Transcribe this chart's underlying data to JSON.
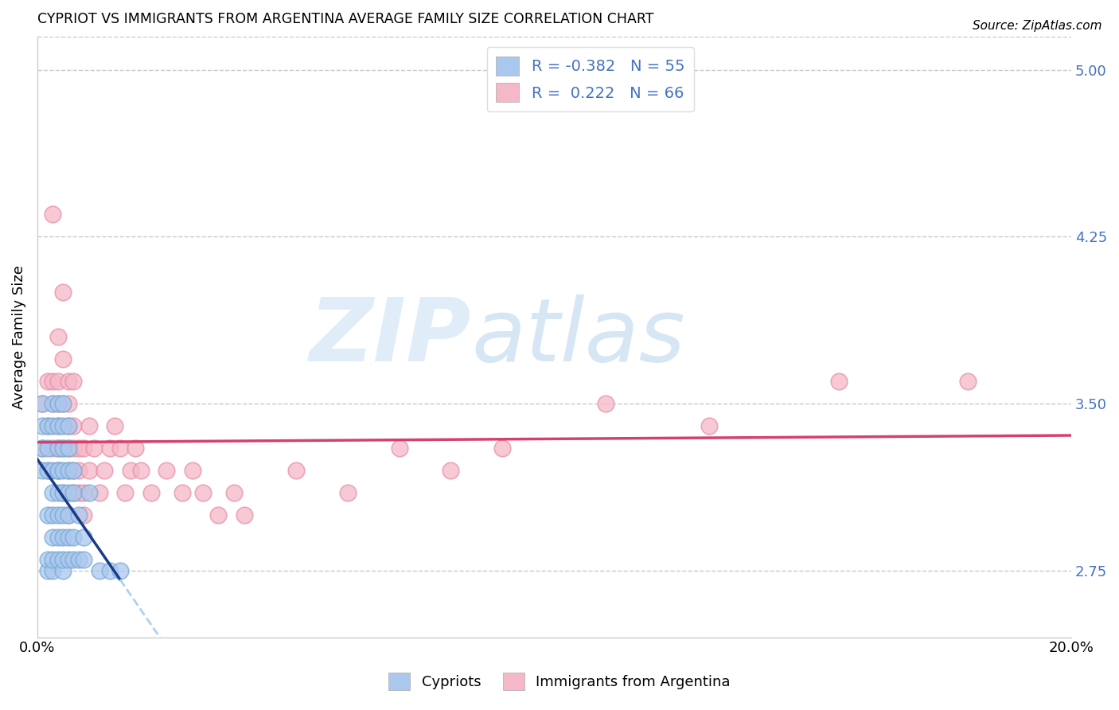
{
  "title": "CYPRIOT VS IMMIGRANTS FROM ARGENTINA AVERAGE FAMILY SIZE CORRELATION CHART",
  "source": "Source: ZipAtlas.com",
  "ylabel": "Average Family Size",
  "xlim": [
    0.0,
    0.2
  ],
  "ylim": [
    2.45,
    5.15
  ],
  "yticks": [
    2.75,
    3.5,
    4.25,
    5.0
  ],
  "xticks": [
    0.0,
    0.05,
    0.1,
    0.15,
    0.2
  ],
  "xticklabels": [
    "0.0%",
    "",
    "",
    "",
    "20.0%"
  ],
  "yticklabel_color": "#4472c4",
  "background_color": "#ffffff",
  "grid_color": "#c8c8c8",
  "watermark_zip": "ZIP",
  "watermark_atlas": "atlas",
  "cypriot_color": "#aac8ee",
  "cypriot_edge_color": "#7aaad4",
  "argentina_color": "#f5b8c8",
  "argentina_edge_color": "#e890a8",
  "cypriot_line_color": "#1a3a8a",
  "argentina_line_color": "#d44070",
  "cypriot_line_dashed_color": "#b0d0f0",
  "legend_title_cypriot": "Cypriots",
  "legend_title_argentina": "Immigrants from Argentina",
  "legend_blue_r": "-0.382",
  "legend_blue_n": "55",
  "legend_pink_r": "0.222",
  "legend_pink_n": "66",
  "cypriot_x": [
    0.001,
    0.001,
    0.001,
    0.001,
    0.002,
    0.002,
    0.002,
    0.002,
    0.002,
    0.002,
    0.003,
    0.003,
    0.003,
    0.003,
    0.003,
    0.003,
    0.003,
    0.003,
    0.004,
    0.004,
    0.004,
    0.004,
    0.004,
    0.004,
    0.004,
    0.004,
    0.004,
    0.005,
    0.005,
    0.005,
    0.005,
    0.005,
    0.005,
    0.005,
    0.005,
    0.005,
    0.006,
    0.006,
    0.006,
    0.006,
    0.006,
    0.006,
    0.006,
    0.007,
    0.007,
    0.007,
    0.007,
    0.008,
    0.008,
    0.009,
    0.009,
    0.01,
    0.012,
    0.014,
    0.016
  ],
  "cypriot_y": [
    3.2,
    3.3,
    3.4,
    3.5,
    2.75,
    2.8,
    3.0,
    3.2,
    3.3,
    3.4,
    2.75,
    2.8,
    2.9,
    3.0,
    3.1,
    3.2,
    3.4,
    3.5,
    2.8,
    2.9,
    3.0,
    3.1,
    3.2,
    3.3,
    3.4,
    3.5,
    3.2,
    2.75,
    2.8,
    2.9,
    3.0,
    3.1,
    3.2,
    3.3,
    3.4,
    3.5,
    2.8,
    2.9,
    3.0,
    3.1,
    3.2,
    3.3,
    3.4,
    2.8,
    2.9,
    3.1,
    3.2,
    2.8,
    3.0,
    2.8,
    2.9,
    3.1,
    2.75,
    2.75,
    2.75
  ],
  "argentina_x": [
    0.001,
    0.001,
    0.002,
    0.002,
    0.002,
    0.003,
    0.003,
    0.003,
    0.003,
    0.004,
    0.004,
    0.004,
    0.004,
    0.004,
    0.004,
    0.005,
    0.005,
    0.005,
    0.005,
    0.005,
    0.006,
    0.006,
    0.006,
    0.006,
    0.006,
    0.006,
    0.007,
    0.007,
    0.007,
    0.007,
    0.007,
    0.008,
    0.008,
    0.008,
    0.009,
    0.009,
    0.009,
    0.01,
    0.01,
    0.011,
    0.012,
    0.013,
    0.014,
    0.015,
    0.016,
    0.017,
    0.018,
    0.019,
    0.02,
    0.022,
    0.025,
    0.028,
    0.03,
    0.032,
    0.035,
    0.038,
    0.04,
    0.05,
    0.06,
    0.07,
    0.08,
    0.09,
    0.11,
    0.13,
    0.155,
    0.18
  ],
  "argentina_y": [
    3.3,
    3.5,
    3.2,
    3.4,
    3.6,
    3.3,
    3.5,
    3.6,
    4.35,
    3.2,
    3.3,
    3.4,
    3.5,
    3.6,
    3.8,
    3.1,
    3.3,
    3.5,
    3.7,
    4.0,
    3.0,
    3.2,
    3.3,
    3.4,
    3.5,
    3.6,
    3.1,
    3.2,
    3.3,
    3.4,
    3.6,
    3.1,
    3.2,
    3.3,
    3.0,
    3.1,
    3.3,
    3.2,
    3.4,
    3.3,
    3.1,
    3.2,
    3.3,
    3.4,
    3.3,
    3.1,
    3.2,
    3.3,
    3.2,
    3.1,
    3.2,
    3.1,
    3.2,
    3.1,
    3.0,
    3.1,
    3.0,
    3.2,
    3.1,
    3.3,
    3.2,
    3.3,
    3.5,
    3.4,
    3.6,
    3.6
  ],
  "R_cypriot": -0.382,
  "R_argentina": 0.222
}
